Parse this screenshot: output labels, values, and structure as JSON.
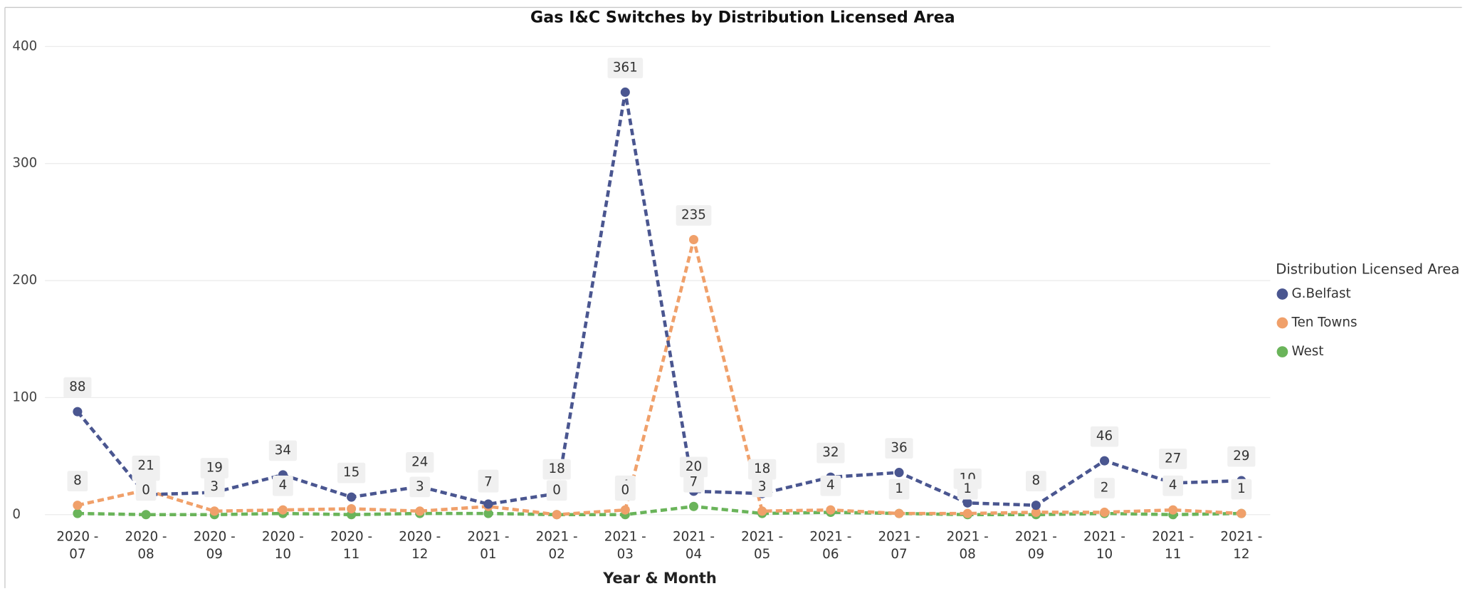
{
  "chart_data": {
    "type": "line",
    "title": "Gas I&C Switches by Distribution Licensed Area",
    "x_label": "Year & Month",
    "legend_title": "Distribution Licensed Area",
    "legend_position": "right",
    "grid": true,
    "categories": [
      "2020 - 07",
      "2020 - 08",
      "2020 - 09",
      "2020 - 10",
      "2020 - 11",
      "2020 - 12",
      "2021 - 01",
      "2021 - 02",
      "2021 - 03",
      "2021 - 04",
      "2021 - 05",
      "2021 - 06",
      "2021 - 07",
      "2021 - 08",
      "2021 - 09",
      "2021 - 10",
      "2021 - 11",
      "2021 - 12"
    ],
    "ylim": [
      0,
      400
    ],
    "yticks": [
      0,
      100,
      200,
      300,
      400
    ],
    "series": [
      {
        "name": "G.Belfast",
        "color": "#4a5690",
        "values": [
          88,
          17,
          19,
          34,
          15,
          24,
          9,
          18,
          361,
          20,
          18,
          32,
          36,
          10,
          8,
          46,
          27,
          29
        ],
        "value_labels": [
          "88",
          "17",
          "19",
          "34",
          "15",
          "24",
          "9",
          "18",
          "361",
          "20",
          "18",
          "32",
          "36",
          "10",
          "8",
          "46",
          "27",
          "29"
        ]
      },
      {
        "name": "Ten Towns",
        "color": "#f0a06a",
        "values": [
          8,
          21,
          3,
          4,
          5,
          3,
          7,
          0,
          4,
          235,
          3,
          4,
          1,
          1,
          2,
          2,
          4,
          1
        ],
        "value_labels": [
          "8",
          "21",
          "3",
          "4",
          null,
          "3",
          "7",
          "0",
          "4",
          "235",
          "3",
          "4",
          "1",
          "1",
          null,
          "2",
          "4",
          "1"
        ]
      },
      {
        "name": "West",
        "color": "#6ab45a",
        "values": [
          1,
          0,
          0,
          1,
          0,
          1,
          1,
          0,
          0,
          7,
          1,
          2,
          1,
          0,
          0,
          1,
          0,
          1
        ],
        "value_labels": [
          null,
          "0",
          null,
          null,
          null,
          null,
          null,
          null,
          "0",
          "7",
          null,
          null,
          null,
          null,
          null,
          null,
          null,
          null
        ]
      }
    ]
  }
}
